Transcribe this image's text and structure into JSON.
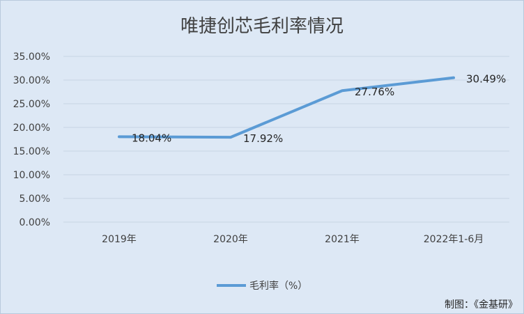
{
  "chart_data": {
    "type": "line",
    "title": "唯捷创芯毛利率情况",
    "categories": [
      "2019年",
      "2020年",
      "2021年",
      "2022年1-6月"
    ],
    "series": [
      {
        "name": "毛利率（%）",
        "values": [
          18.04,
          17.92,
          27.76,
          30.49
        ],
        "data_labels": [
          "18.04%",
          "17.92%",
          "27.76%",
          "30.49%"
        ],
        "color": "#5b9bd5"
      }
    ],
    "y_ticks": [
      "0.00%",
      "5.00%",
      "10.00%",
      "15.00%",
      "20.00%",
      "25.00%",
      "30.00%",
      "35.00%"
    ],
    "ylim": [
      0,
      35
    ],
    "grid": true,
    "legend_position": "bottom"
  },
  "source_note": "制图：《金基研》",
  "colors": {
    "background": "#dde8f5",
    "grid": "#c7d3e2",
    "line": "#5b9bd5",
    "text": "#404040"
  }
}
